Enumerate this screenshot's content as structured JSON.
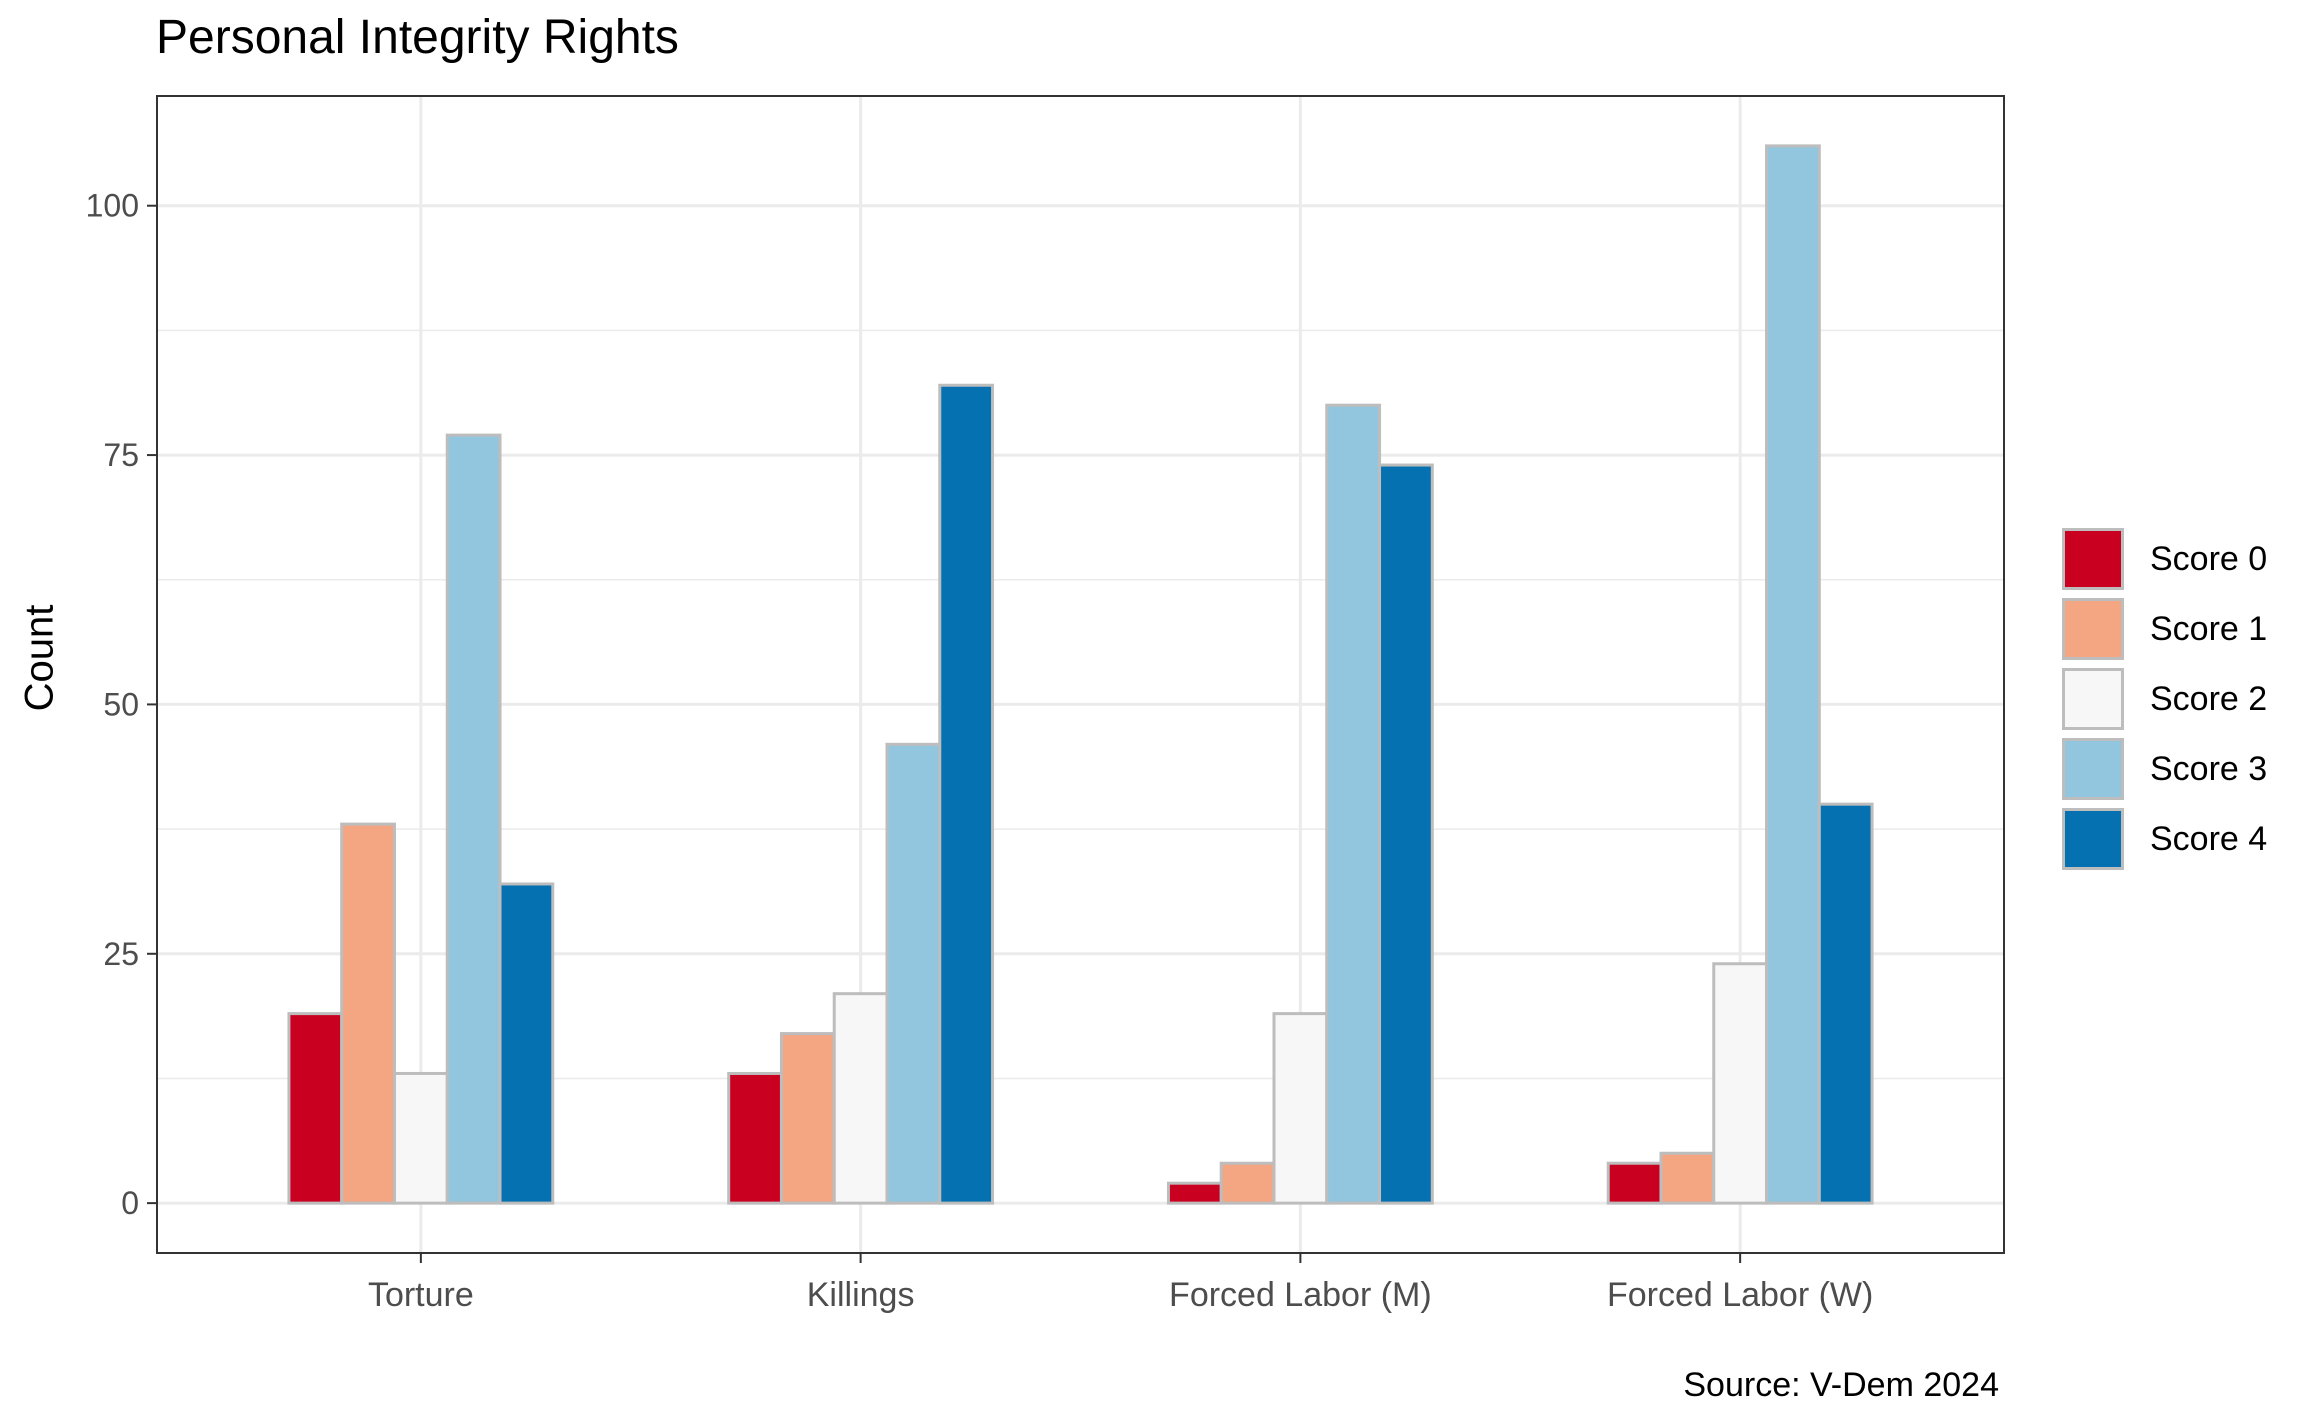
{
  "chart_data": {
    "type": "bar",
    "title": "Personal Integrity Rights",
    "xlabel": "",
    "ylabel": "Count",
    "caption": "Source: V-Dem 2024",
    "categories": [
      "Torture",
      "Killings",
      "Forced Labor (M)",
      "Forced Labor (W)"
    ],
    "series": [
      {
        "name": "Score 0",
        "color": "#CA0020",
        "values": [
          19,
          13,
          2,
          4
        ]
      },
      {
        "name": "Score 1",
        "color": "#F4A582",
        "values": [
          38,
          17,
          4,
          5
        ]
      },
      {
        "name": "Score 2",
        "color": "#F7F7F7",
        "values": [
          13,
          21,
          19,
          24
        ]
      },
      {
        "name": "Score 3",
        "color": "#92C5DE",
        "values": [
          77,
          46,
          80,
          106
        ]
      },
      {
        "name": "Score 4",
        "color": "#0571B0",
        "values": [
          32,
          82,
          74,
          40
        ]
      }
    ],
    "ylim": [
      -5,
      111
    ],
    "yticks": [
      0,
      25,
      50,
      75,
      100
    ],
    "grid": true,
    "legend_position": "right",
    "bar_outline_color": "#BDBDBD"
  }
}
